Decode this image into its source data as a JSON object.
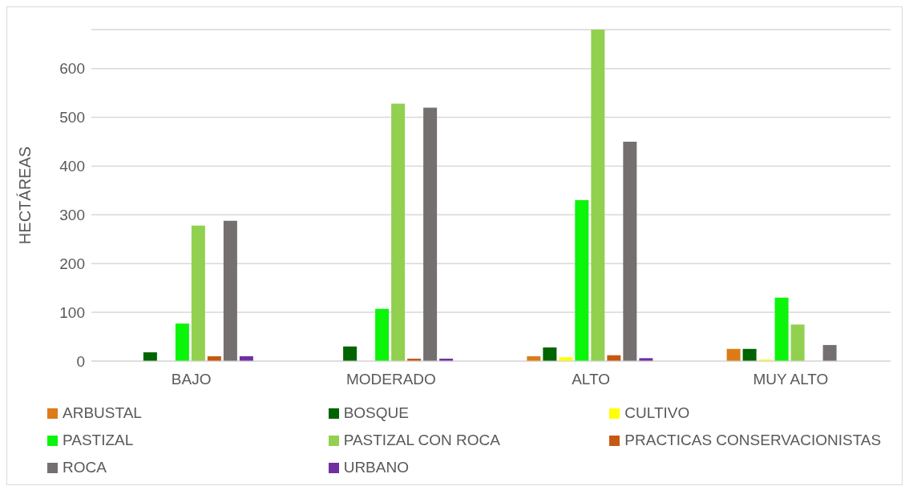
{
  "chart_data": {
    "type": "bar",
    "ylabel": "HECTÁREAS",
    "categories": [
      "BAJO",
      "MODERADO",
      "ALTO",
      "MUY ALTO"
    ],
    "series": [
      {
        "name": "ARBUSTAL",
        "color": "#dd7b17",
        "values": [
          0,
          0,
          10,
          25
        ]
      },
      {
        "name": "BOSQUE",
        "color": "#006400",
        "values": [
          18,
          30,
          28,
          25
        ]
      },
      {
        "name": "CULTIVO",
        "color": "#ffff00",
        "values": [
          0,
          0,
          8,
          3
        ]
      },
      {
        "name": "PASTIZAL",
        "color": "#0af50a",
        "values": [
          77,
          107,
          330,
          130
        ]
      },
      {
        "name": "PASTIZAL CON ROCA",
        "color": "#92d050",
        "values": [
          278,
          528,
          680,
          75
        ]
      },
      {
        "name": "PRACTICAS CONSERVACIONISTAS",
        "color": "#c65911",
        "values": [
          10,
          5,
          12,
          0
        ]
      },
      {
        "name": "ROCA",
        "color": "#757070",
        "values": [
          288,
          520,
          450,
          33
        ]
      },
      {
        "name": "URBANO",
        "color": "#7030a0",
        "values": [
          10,
          5,
          6,
          0
        ]
      }
    ],
    "ylim": [
      0,
      680
    ],
    "yticks": [
      0,
      100,
      200,
      300,
      400,
      500,
      600
    ],
    "grid": "y",
    "legend": "bottom"
  }
}
